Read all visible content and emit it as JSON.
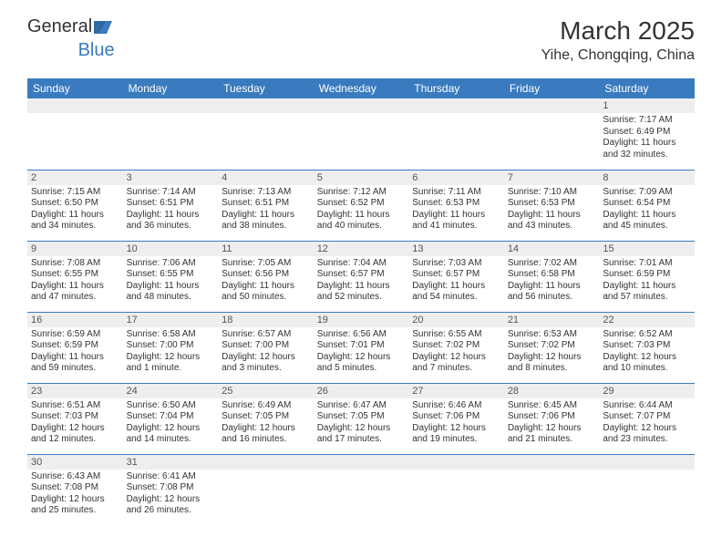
{
  "logo": {
    "text_a": "General",
    "text_b": "Blue"
  },
  "title": "March 2025",
  "location": "Yihe, Chongqing, China",
  "colors": {
    "header_bg": "#3a7bbf",
    "header_text": "#ffffff",
    "daynum_bg": "#eeeeee",
    "cell_border": "#3a7bbf",
    "text": "#333333"
  },
  "weekdays": [
    "Sunday",
    "Monday",
    "Tuesday",
    "Wednesday",
    "Thursday",
    "Friday",
    "Saturday"
  ],
  "weeks": [
    [
      {
        "n": "",
        "sr": "",
        "ss": "",
        "dl": ""
      },
      {
        "n": "",
        "sr": "",
        "ss": "",
        "dl": ""
      },
      {
        "n": "",
        "sr": "",
        "ss": "",
        "dl": ""
      },
      {
        "n": "",
        "sr": "",
        "ss": "",
        "dl": ""
      },
      {
        "n": "",
        "sr": "",
        "ss": "",
        "dl": ""
      },
      {
        "n": "",
        "sr": "",
        "ss": "",
        "dl": ""
      },
      {
        "n": "1",
        "sr": "Sunrise: 7:17 AM",
        "ss": "Sunset: 6:49 PM",
        "dl": "Daylight: 11 hours and 32 minutes."
      }
    ],
    [
      {
        "n": "2",
        "sr": "Sunrise: 7:15 AM",
        "ss": "Sunset: 6:50 PM",
        "dl": "Daylight: 11 hours and 34 minutes."
      },
      {
        "n": "3",
        "sr": "Sunrise: 7:14 AM",
        "ss": "Sunset: 6:51 PM",
        "dl": "Daylight: 11 hours and 36 minutes."
      },
      {
        "n": "4",
        "sr": "Sunrise: 7:13 AM",
        "ss": "Sunset: 6:51 PM",
        "dl": "Daylight: 11 hours and 38 minutes."
      },
      {
        "n": "5",
        "sr": "Sunrise: 7:12 AM",
        "ss": "Sunset: 6:52 PM",
        "dl": "Daylight: 11 hours and 40 minutes."
      },
      {
        "n": "6",
        "sr": "Sunrise: 7:11 AM",
        "ss": "Sunset: 6:53 PM",
        "dl": "Daylight: 11 hours and 41 minutes."
      },
      {
        "n": "7",
        "sr": "Sunrise: 7:10 AM",
        "ss": "Sunset: 6:53 PM",
        "dl": "Daylight: 11 hours and 43 minutes."
      },
      {
        "n": "8",
        "sr": "Sunrise: 7:09 AM",
        "ss": "Sunset: 6:54 PM",
        "dl": "Daylight: 11 hours and 45 minutes."
      }
    ],
    [
      {
        "n": "9",
        "sr": "Sunrise: 7:08 AM",
        "ss": "Sunset: 6:55 PM",
        "dl": "Daylight: 11 hours and 47 minutes."
      },
      {
        "n": "10",
        "sr": "Sunrise: 7:06 AM",
        "ss": "Sunset: 6:55 PM",
        "dl": "Daylight: 11 hours and 48 minutes."
      },
      {
        "n": "11",
        "sr": "Sunrise: 7:05 AM",
        "ss": "Sunset: 6:56 PM",
        "dl": "Daylight: 11 hours and 50 minutes."
      },
      {
        "n": "12",
        "sr": "Sunrise: 7:04 AM",
        "ss": "Sunset: 6:57 PM",
        "dl": "Daylight: 11 hours and 52 minutes."
      },
      {
        "n": "13",
        "sr": "Sunrise: 7:03 AM",
        "ss": "Sunset: 6:57 PM",
        "dl": "Daylight: 11 hours and 54 minutes."
      },
      {
        "n": "14",
        "sr": "Sunrise: 7:02 AM",
        "ss": "Sunset: 6:58 PM",
        "dl": "Daylight: 11 hours and 56 minutes."
      },
      {
        "n": "15",
        "sr": "Sunrise: 7:01 AM",
        "ss": "Sunset: 6:59 PM",
        "dl": "Daylight: 11 hours and 57 minutes."
      }
    ],
    [
      {
        "n": "16",
        "sr": "Sunrise: 6:59 AM",
        "ss": "Sunset: 6:59 PM",
        "dl": "Daylight: 11 hours and 59 minutes."
      },
      {
        "n": "17",
        "sr": "Sunrise: 6:58 AM",
        "ss": "Sunset: 7:00 PM",
        "dl": "Daylight: 12 hours and 1 minute."
      },
      {
        "n": "18",
        "sr": "Sunrise: 6:57 AM",
        "ss": "Sunset: 7:00 PM",
        "dl": "Daylight: 12 hours and 3 minutes."
      },
      {
        "n": "19",
        "sr": "Sunrise: 6:56 AM",
        "ss": "Sunset: 7:01 PM",
        "dl": "Daylight: 12 hours and 5 minutes."
      },
      {
        "n": "20",
        "sr": "Sunrise: 6:55 AM",
        "ss": "Sunset: 7:02 PM",
        "dl": "Daylight: 12 hours and 7 minutes."
      },
      {
        "n": "21",
        "sr": "Sunrise: 6:53 AM",
        "ss": "Sunset: 7:02 PM",
        "dl": "Daylight: 12 hours and 8 minutes."
      },
      {
        "n": "22",
        "sr": "Sunrise: 6:52 AM",
        "ss": "Sunset: 7:03 PM",
        "dl": "Daylight: 12 hours and 10 minutes."
      }
    ],
    [
      {
        "n": "23",
        "sr": "Sunrise: 6:51 AM",
        "ss": "Sunset: 7:03 PM",
        "dl": "Daylight: 12 hours and 12 minutes."
      },
      {
        "n": "24",
        "sr": "Sunrise: 6:50 AM",
        "ss": "Sunset: 7:04 PM",
        "dl": "Daylight: 12 hours and 14 minutes."
      },
      {
        "n": "25",
        "sr": "Sunrise: 6:49 AM",
        "ss": "Sunset: 7:05 PM",
        "dl": "Daylight: 12 hours and 16 minutes."
      },
      {
        "n": "26",
        "sr": "Sunrise: 6:47 AM",
        "ss": "Sunset: 7:05 PM",
        "dl": "Daylight: 12 hours and 17 minutes."
      },
      {
        "n": "27",
        "sr": "Sunrise: 6:46 AM",
        "ss": "Sunset: 7:06 PM",
        "dl": "Daylight: 12 hours and 19 minutes."
      },
      {
        "n": "28",
        "sr": "Sunrise: 6:45 AM",
        "ss": "Sunset: 7:06 PM",
        "dl": "Daylight: 12 hours and 21 minutes."
      },
      {
        "n": "29",
        "sr": "Sunrise: 6:44 AM",
        "ss": "Sunset: 7:07 PM",
        "dl": "Daylight: 12 hours and 23 minutes."
      }
    ],
    [
      {
        "n": "30",
        "sr": "Sunrise: 6:43 AM",
        "ss": "Sunset: 7:08 PM",
        "dl": "Daylight: 12 hours and 25 minutes."
      },
      {
        "n": "31",
        "sr": "Sunrise: 6:41 AM",
        "ss": "Sunset: 7:08 PM",
        "dl": "Daylight: 12 hours and 26 minutes."
      },
      {
        "n": "",
        "sr": "",
        "ss": "",
        "dl": ""
      },
      {
        "n": "",
        "sr": "",
        "ss": "",
        "dl": ""
      },
      {
        "n": "",
        "sr": "",
        "ss": "",
        "dl": ""
      },
      {
        "n": "",
        "sr": "",
        "ss": "",
        "dl": ""
      },
      {
        "n": "",
        "sr": "",
        "ss": "",
        "dl": ""
      }
    ]
  ]
}
